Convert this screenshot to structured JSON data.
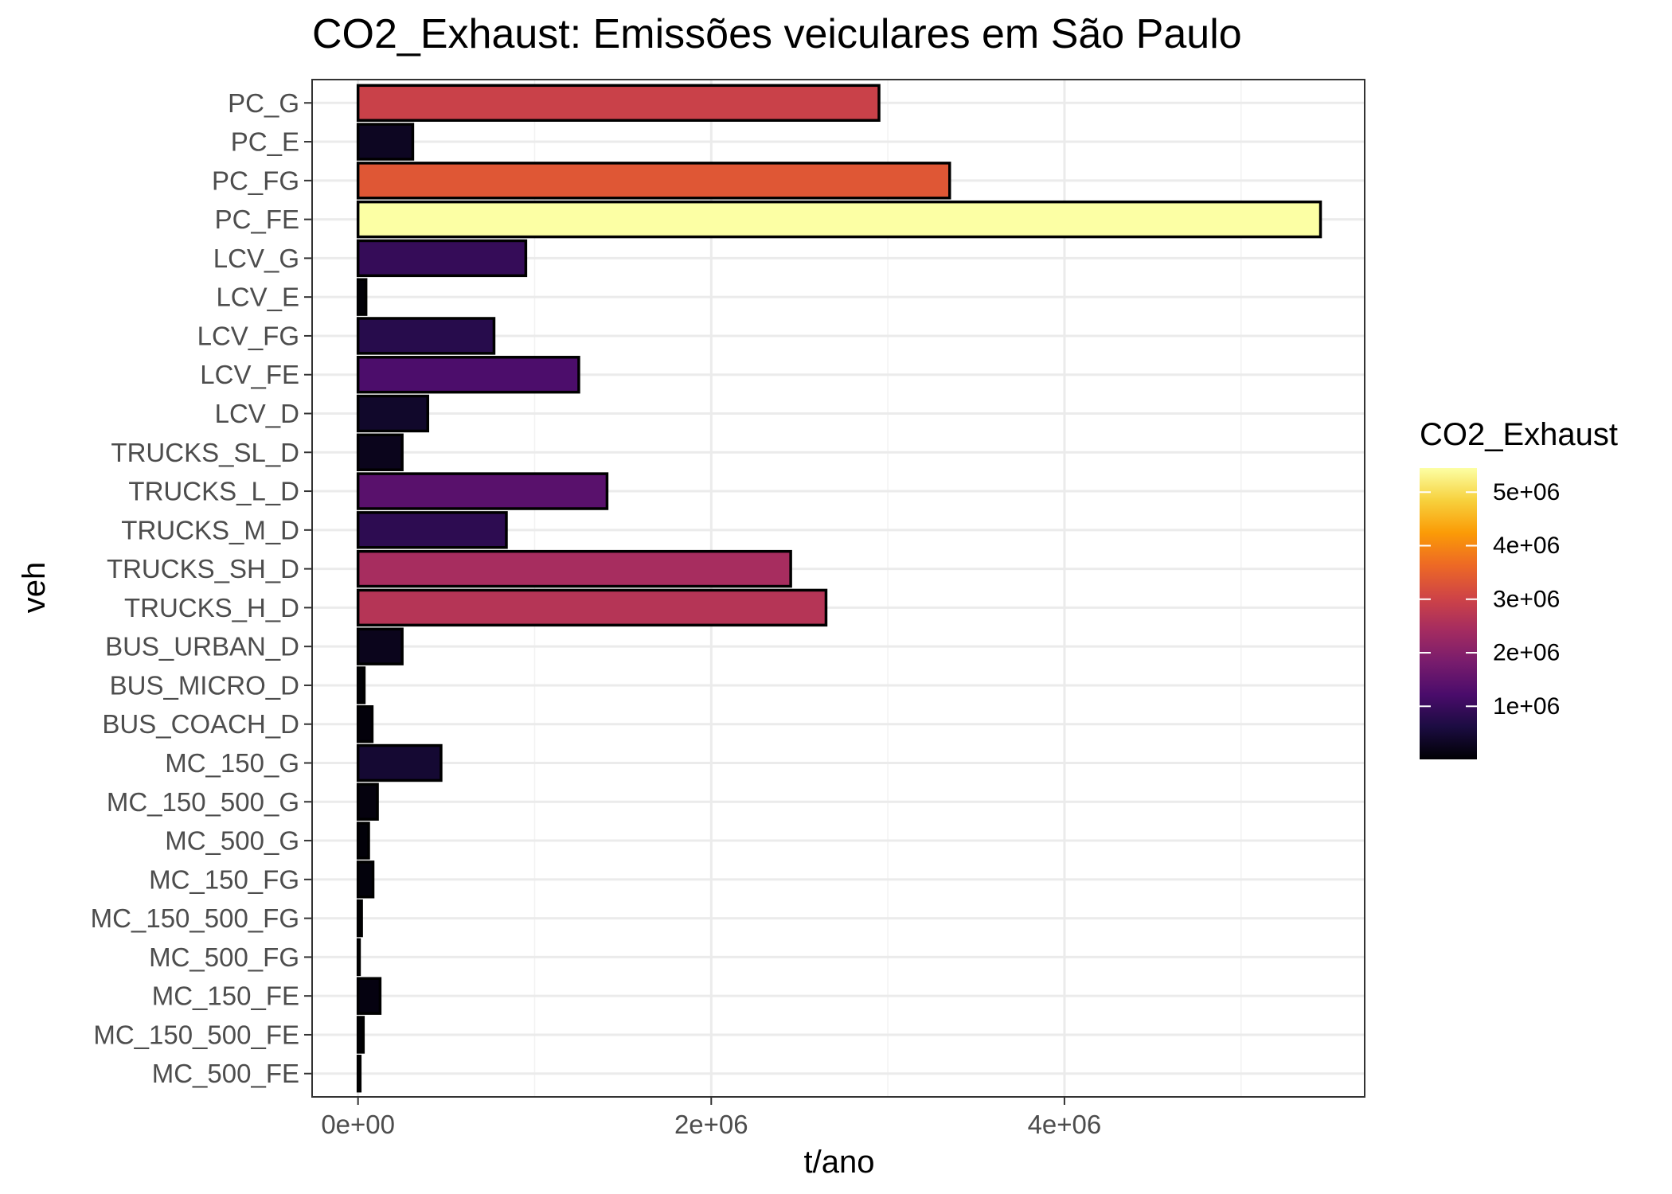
{
  "chart_data": {
    "type": "bar",
    "orientation": "horizontal",
    "title": "CO2_Exhaust: Emissões veiculares em São Paulo",
    "xlabel": "t/ano",
    "ylabel": "veh",
    "xlim": [
      -260000,
      5700000
    ],
    "x_ticks": [
      {
        "value": 0,
        "label": "0e+00"
      },
      {
        "value": 2000000,
        "label": "2e+06"
      },
      {
        "value": 4000000,
        "label": "4e+06"
      }
    ],
    "x_minor_ticks": [
      1000000,
      3000000,
      5000000
    ],
    "grid": true,
    "categories": [
      "PC_G",
      "PC_E",
      "PC_FG",
      "PC_FE",
      "LCV_G",
      "LCV_E",
      "LCV_FG",
      "LCV_FE",
      "LCV_D",
      "TRUCKS_SL_D",
      "TRUCKS_L_D",
      "TRUCKS_M_D",
      "TRUCKS_SH_D",
      "TRUCKS_H_D",
      "BUS_URBAN_D",
      "BUS_MICRO_D",
      "BUS_COACH_D",
      "MC_150_G",
      "MC_150_500_G",
      "MC_500_G",
      "MC_150_FG",
      "MC_150_500_FG",
      "MC_500_FG",
      "MC_150_FE",
      "MC_150_500_FE",
      "MC_500_FE"
    ],
    "values": [
      2950000,
      310000,
      3350000,
      5450000,
      950000,
      45000,
      770000,
      1250000,
      395000,
      250000,
      1410000,
      840000,
      2450000,
      2650000,
      250000,
      35000,
      80000,
      470000,
      110000,
      60000,
      85000,
      20000,
      8000,
      125000,
      30000,
      12000
    ],
    "legend": {
      "title": "CO2_Exhaust",
      "position": "right",
      "min": 8000,
      "max": 5450000,
      "ticks": [
        {
          "value": 1000000,
          "label": "1e+06"
        },
        {
          "value": 2000000,
          "label": "2e+06"
        },
        {
          "value": 3000000,
          "label": "3e+06"
        },
        {
          "value": 4000000,
          "label": "4e+06"
        },
        {
          "value": 5000000,
          "label": "5e+06"
        }
      ],
      "palette": [
        "#000004",
        "#1b0c41",
        "#4a0c6b",
        "#781c6d",
        "#a52c60",
        "#cf4446",
        "#ed6925",
        "#fb9b06",
        "#f7d13d",
        "#fcffa4"
      ]
    }
  }
}
